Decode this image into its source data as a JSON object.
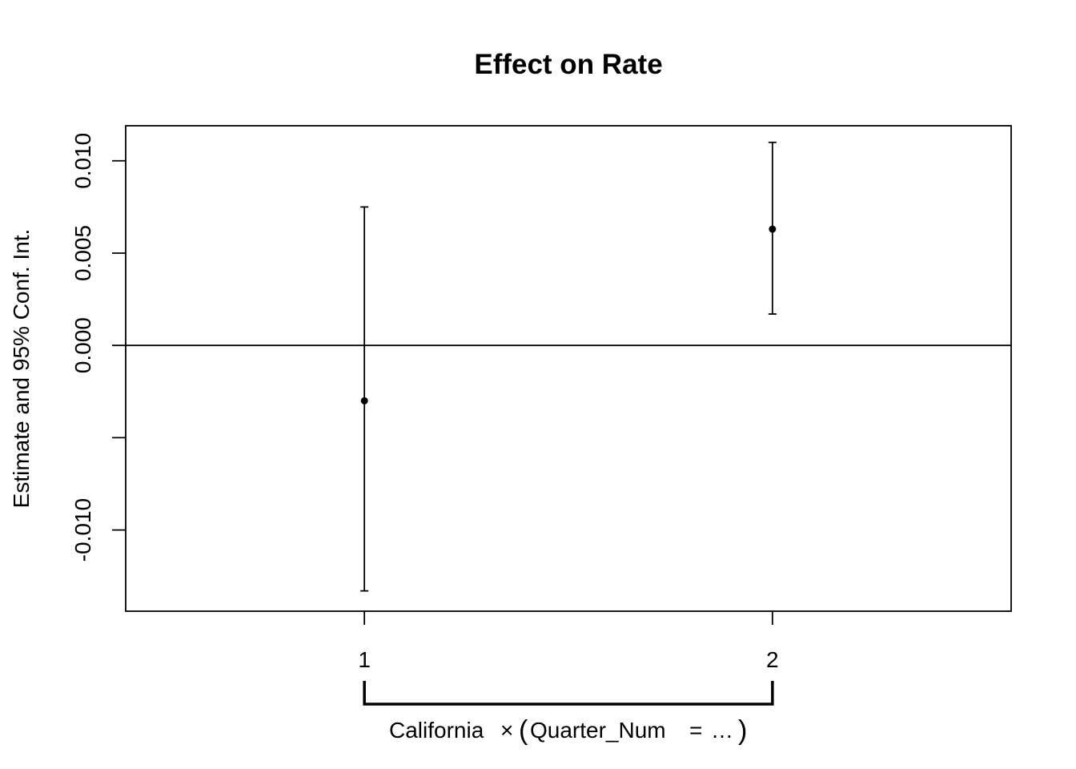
{
  "chart_data": {
    "type": "scatter",
    "title": "Effect on Rate",
    "ylabel": "Estimate and 95% Conf. Int.",
    "xlabel": {
      "group": "California",
      "times": "×",
      "open": "(",
      "var": "Quarter_Num",
      "eq": "=",
      "dots": "…",
      "close": ")"
    },
    "x": [
      1,
      2
    ],
    "x_tick_labels": [
      "1",
      "2"
    ],
    "estimates": [
      -0.003,
      0.0063
    ],
    "ci_low": [
      -0.0133,
      0.0017
    ],
    "ci_high": [
      0.0075,
      0.011
    ],
    "xlim": [
      0.415,
      2.585
    ],
    "ylim": [
      -0.0144,
      0.0119
    ],
    "y_ticks": [
      -0.01,
      -0.005,
      0.0,
      0.005,
      0.01
    ],
    "y_tick_labels": [
      "-0.010",
      "",
      "0.000",
      "0.005",
      "0.010"
    ],
    "reference_line": 0,
    "grid": false
  }
}
